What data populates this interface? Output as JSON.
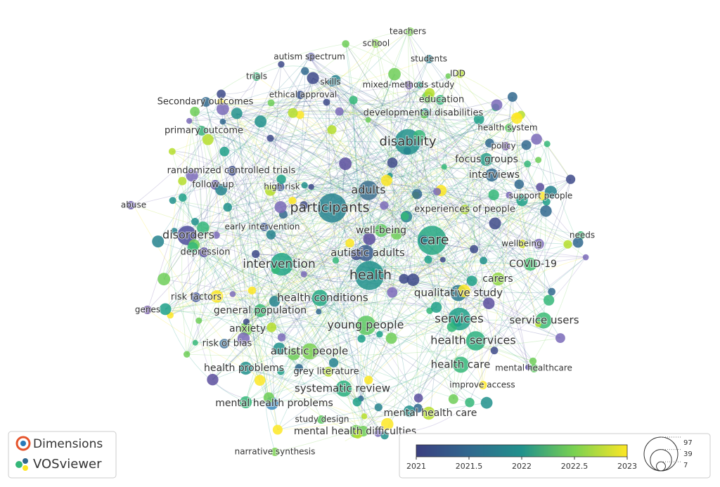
{
  "nodes": [
    {
      "label": "teachers",
      "color": "#7ad151"
    },
    {
      "label": "school",
      "color": "#86d549"
    },
    {
      "label": "autism spectrum",
      "color": "#5c5ea8"
    },
    {
      "label": "students",
      "color": "#2c7f8e"
    },
    {
      "label": "IDD",
      "color": "#b5de2b"
    },
    {
      "label": "trials",
      "color": "#35b779"
    },
    {
      "label": "skills",
      "color": "#287d8e"
    },
    {
      "label": "mixed-methods study",
      "color": "#6a55a0"
    },
    {
      "label": "ethical approval",
      "color": "#3b528b"
    },
    {
      "label": "education",
      "color": "#35b779"
    },
    {
      "label": "Secondary outcomes",
      "color": "#31688e"
    },
    {
      "label": "developmental disabilities",
      "color": "#21918c"
    },
    {
      "label": "health system",
      "color": "#5ec962"
    },
    {
      "label": "primary outcome",
      "color": "#3bb07a"
    },
    {
      "label": "disability",
      "color": "#21918c"
    },
    {
      "label": "policy",
      "color": "#6b4fa0"
    },
    {
      "label": "focus groups",
      "color": "#2a9d8a"
    },
    {
      "label": "interviews",
      "color": "#31688e"
    },
    {
      "label": "randomized controlled trials",
      "color": "#3e4d8a"
    },
    {
      "label": "follow-up",
      "color": "#5a4fa0"
    },
    {
      "label": "high risk",
      "color": "#4a60a0"
    },
    {
      "label": "adults",
      "color": "#3b6f8e"
    },
    {
      "label": "support people",
      "color": "#fde725"
    },
    {
      "label": "abuse",
      "color": "#6a5aa8"
    },
    {
      "label": "participants",
      "color": "#26828e"
    },
    {
      "label": "experiences of people",
      "color": "#b0dd2f"
    },
    {
      "label": "early intervention",
      "color": "#3e5a9a"
    },
    {
      "label": "needs",
      "color": "#3cbb75"
    },
    {
      "label": "disorders",
      "color": "#4b4b9a"
    },
    {
      "label": "well-being",
      "color": "#5ec962"
    },
    {
      "label": "care",
      "color": "#26a784"
    },
    {
      "label": "wellbeing",
      "color": "#d0e11c"
    },
    {
      "label": "depression",
      "color": "#5a4fa0"
    },
    {
      "label": "autistic adults",
      "color": "#3b5c8e"
    },
    {
      "label": "intervention",
      "color": "#21a685"
    },
    {
      "label": "COVID-19",
      "color": "#44bf70"
    },
    {
      "label": "health",
      "color": "#21918c"
    },
    {
      "label": "carers",
      "color": "#90d743"
    },
    {
      "label": "qualitative study",
      "color": "#2a788e"
    },
    {
      "label": "risk factors",
      "color": "#4a5aa0"
    },
    {
      "label": "health conditions",
      "color": "#22a884"
    },
    {
      "label": "genes",
      "color": "#6a4fa0"
    },
    {
      "label": "general population",
      "color": "#3cbb75"
    },
    {
      "label": "services",
      "color": "#1fa088"
    },
    {
      "label": "service users",
      "color": "#3cbb75"
    },
    {
      "label": "young people",
      "color": "#5ec962"
    },
    {
      "label": "anxiety",
      "color": "#7ad151"
    },
    {
      "label": "health services",
      "color": "#2ab07f"
    },
    {
      "label": "risk of bias",
      "color": "#4a7aa0"
    },
    {
      "label": "autistic people",
      "color": "#7ad151"
    },
    {
      "label": "health problems",
      "color": "#21918c"
    },
    {
      "label": "health care",
      "color": "#35b779"
    },
    {
      "label": "grey literature",
      "color": "#b5de2b"
    },
    {
      "label": "mental healthcare",
      "color": "#5ec962"
    },
    {
      "label": "systematic review",
      "color": "#2ab07f"
    },
    {
      "label": "improve access",
      "color": "#fde725"
    },
    {
      "label": "mental health problems",
      "color": "#3b8bc0"
    },
    {
      "label": "mental health care",
      "color": "#b5de2b"
    },
    {
      "label": "study design",
      "color": "#5ec962"
    },
    {
      "label": "mental health difficulties",
      "color": "#6ece58"
    },
    {
      "label": "narrative synthesis",
      "color": "#7ad151"
    }
  ],
  "legend": {
    "year_ticks": [
      2021,
      2021.5,
      2022,
      2022.5,
      2023
    ],
    "size_ticks": [
      97,
      39,
      7
    ]
  },
  "logo": {
    "top": "Dimensions",
    "bottom": "VOSviewer"
  }
}
